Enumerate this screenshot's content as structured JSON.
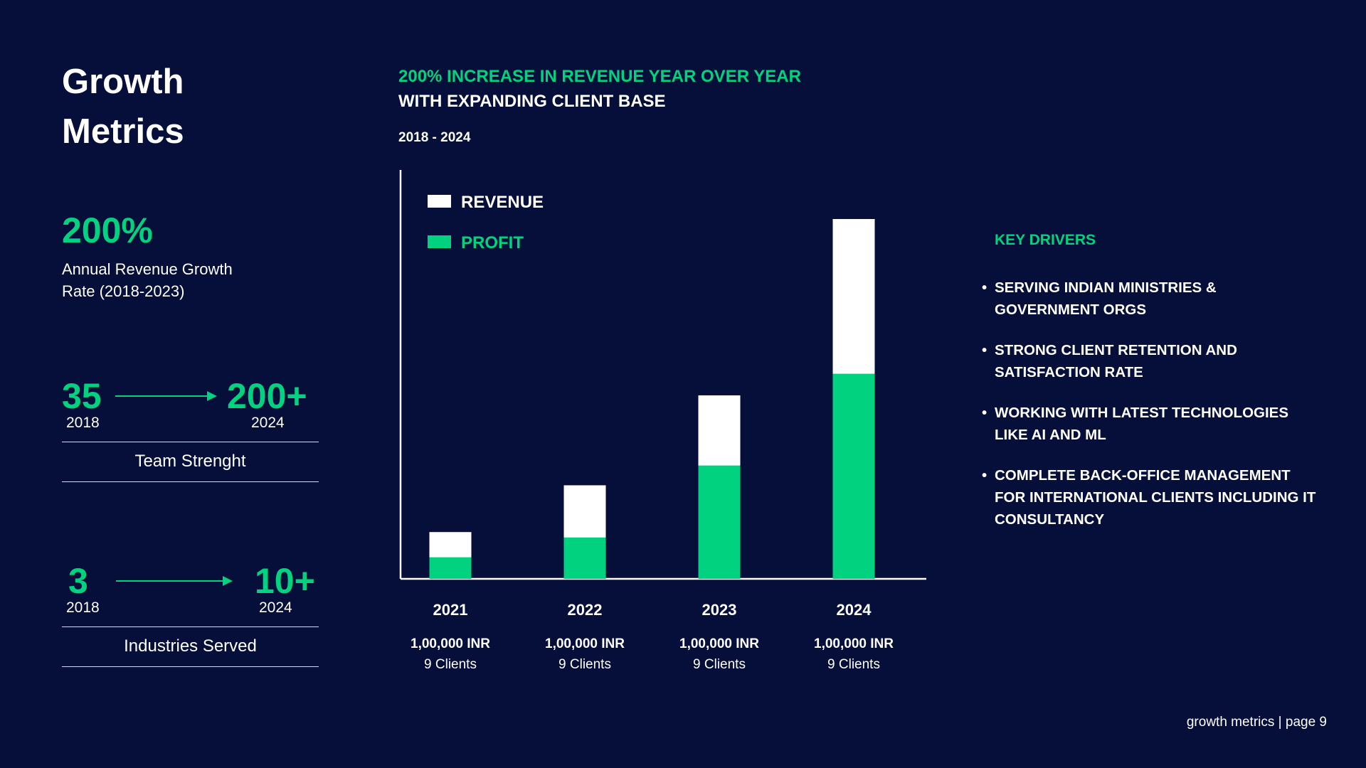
{
  "page": {
    "title_line1": "Growth",
    "title_line2": "Metrics",
    "footer": "growth metrics | page 9"
  },
  "colors": {
    "background": "#060f3a",
    "accent": "#00d27f",
    "text": "#ffffff"
  },
  "highlight": {
    "value": "200%",
    "desc_line1": "Annual Revenue Growth",
    "desc_line2": "Rate (2018-2023)"
  },
  "metrics": [
    {
      "from_value": "35",
      "from_year": "2018",
      "to_value": "200+",
      "to_year": "2024",
      "label": "Team Strenght"
    },
    {
      "from_value": "3",
      "from_year": "2018",
      "to_value": "10+",
      "to_year": "2024",
      "label": "Industries Served"
    }
  ],
  "headline": {
    "line1": "200% INCREASE IN REVENUE YEAR OVER YEAR",
    "line2": "WITH EXPANDING CLIENT BASE",
    "date_range": "2018 - 2024"
  },
  "chart_data": {
    "type": "bar",
    "stacked": "overlay",
    "categories": [
      "2021",
      "2022",
      "2023",
      "2024"
    ],
    "series": [
      {
        "name": "REVENUE",
        "color": "#ffffff",
        "values": [
          13,
          26,
          51,
          100
        ]
      },
      {
        "name": "PROFIT",
        "color": "#00d27f",
        "values": [
          6,
          11.5,
          31.5,
          57
        ]
      }
    ],
    "category_details": [
      {
        "amount": "1,00,000 INR",
        "clients": "9 Clients"
      },
      {
        "amount": "1,00,000 INR",
        "clients": "9 Clients"
      },
      {
        "amount": "1,00,000 INR",
        "clients": "9 Clients"
      },
      {
        "amount": "1,00,000 INR",
        "clients": "9 Clients"
      }
    ],
    "ylim": [
      0,
      100
    ],
    "grid": false,
    "legend_position": "top-left"
  },
  "drivers": {
    "title": "KEY DRIVERS",
    "bullet": "•",
    "items": [
      {
        "line1": "SERVING INDIAN MINISTRIES &",
        "line2": "GOVERNMENT ORGS"
      },
      {
        "line1": "STRONG CLIENT RETENTION AND",
        "line2": "SATISFACTION RATE"
      },
      {
        "line1": "WORKING WITH LATEST TECHNOLOGIES",
        "line2": "LIKE AI AND ML"
      },
      {
        "line1": "COMPLETE BACK-OFFICE MANAGEMENT",
        "line2": "FOR INTERNATIONAL CLIENTS INCLUDING IT",
        "line3": "CONSULTANCY"
      }
    ]
  }
}
